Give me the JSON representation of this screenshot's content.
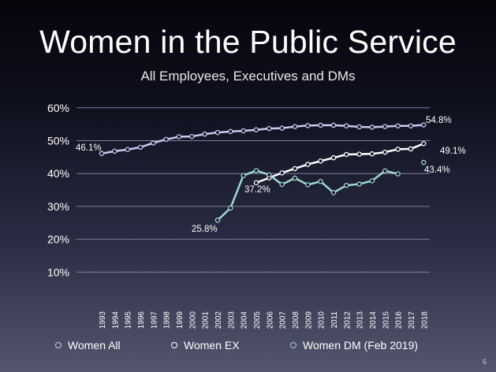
{
  "slide": {
    "title": "Women in the Public Service",
    "subtitle": "All Employees, Executives and DMs",
    "page_number": "6"
  },
  "chart_data": {
    "type": "line",
    "title": "Women in the Public Service",
    "subtitle": "All Employees, Executives and DMs",
    "xlabel": "",
    "ylabel": "",
    "ylim": [
      0,
      60
    ],
    "y_ticks": [
      "10%",
      "20%",
      "30%",
      "40%",
      "50%",
      "60%"
    ],
    "x": [
      "1993",
      "1994",
      "1995",
      "1996",
      "1997",
      "1998",
      "1999",
      "2000",
      "2001",
      "2002",
      "2003",
      "2004",
      "2005",
      "2006",
      "2007",
      "2008",
      "2009",
      "2010",
      "2011",
      "2012",
      "2013",
      "2014",
      "2015",
      "2016",
      "2017",
      "2018"
    ],
    "grid": true,
    "legend_position": "bottom",
    "series": [
      {
        "name": "Women All",
        "color": "#c9c9f3",
        "values": [
          46.1,
          46.8,
          47.3,
          48.0,
          49.3,
          50.4,
          51.2,
          51.3,
          52.0,
          52.5,
          52.8,
          53.0,
          53.3,
          53.7,
          53.8,
          54.3,
          54.6,
          54.7,
          54.7,
          54.5,
          54.2,
          54.1,
          54.3,
          54.5,
          54.5,
          54.8
        ]
      },
      {
        "name": "Women EX",
        "color": "#ffffff",
        "values": [
          null,
          null,
          null,
          null,
          null,
          null,
          null,
          null,
          null,
          null,
          null,
          null,
          37.2,
          38.7,
          40.2,
          41.5,
          42.8,
          43.8,
          44.8,
          45.8,
          45.9,
          46.0,
          46.5,
          47.4,
          47.5,
          49.1
        ]
      },
      {
        "name": "Women DM (Feb 2019)",
        "color": "#9fd8d0",
        "values": [
          null,
          null,
          null,
          null,
          null,
          null,
          null,
          null,
          null,
          25.8,
          29.5,
          39.4,
          40.9,
          39.6,
          36.7,
          38.6,
          36.6,
          37.6,
          34.2,
          36.4,
          36.8,
          37.8,
          40.8,
          39.9,
          null,
          null
        ]
      }
    ],
    "extra_points": [
      {
        "series": "Women DM (Feb 2019)",
        "x": "2018",
        "value": 43.4,
        "label": "43.4%"
      }
    ],
    "annotations": [
      "46.1%",
      "54.8%",
      "49.1%",
      "43.4%",
      "37.2%",
      "25.8%"
    ]
  }
}
